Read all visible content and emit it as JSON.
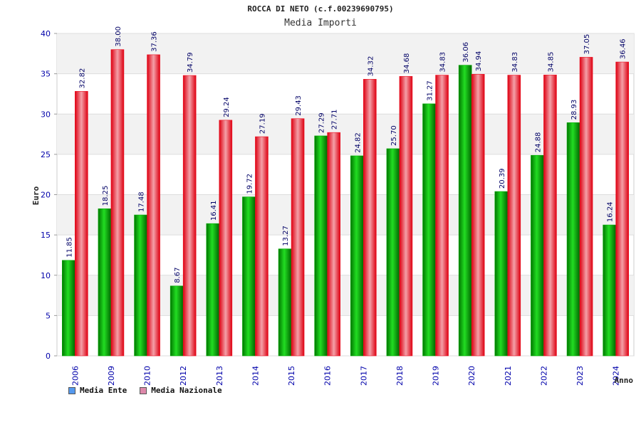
{
  "title": "ROCCA DI NETO (c.f.00239690795)",
  "subtitle": "Media Importi",
  "legend": [
    {
      "label": "Media Ente",
      "color": "#5599ee"
    },
    {
      "label": "Media Nazionale",
      "color": "#dd88aa"
    }
  ],
  "colors": {
    "ente": "#00aa00",
    "nazionale": "#ee1122"
  },
  "chart_data": {
    "type": "bar",
    "title": "ROCCA DI NETO (c.f.00239690795)",
    "subtitle": "Media Importi",
    "xlabel": "Anno",
    "ylabel": "Euro",
    "ylim": [
      0,
      40
    ],
    "yticks": [
      0,
      5,
      10,
      15,
      20,
      25,
      30,
      35,
      40
    ],
    "grid": true,
    "legend_position": "bottom-left",
    "categories": [
      "2006",
      "2009",
      "2010",
      "2012",
      "2013",
      "2014",
      "2015",
      "2016",
      "2017",
      "2018",
      "2019",
      "2020",
      "2021",
      "2022",
      "2023",
      "2024"
    ],
    "series": [
      {
        "name": "Media Ente",
        "values": [
          11.85,
          18.25,
          17.48,
          8.67,
          16.41,
          19.72,
          13.27,
          27.29,
          24.82,
          25.7,
          31.27,
          36.06,
          20.39,
          24.88,
          28.93,
          16.24
        ],
        "labels": [
          "11.85",
          "18.25",
          "17.48",
          "8.67",
          "16.41",
          "19.72",
          "13.27",
          "27.29",
          "24.82",
          "25.70",
          "31.27",
          "36.06",
          "20.39",
          "24.88",
          "28.93",
          "16.24"
        ]
      },
      {
        "name": "Media Nazionale",
        "values": [
          32.82,
          38.0,
          37.36,
          34.79,
          29.24,
          27.19,
          29.43,
          27.71,
          34.32,
          34.68,
          34.83,
          34.94,
          34.83,
          34.85,
          37.05,
          36.46
        ],
        "labels": [
          "32.82",
          "38.00",
          "37.36",
          "34.79",
          "29.24",
          "27.19",
          "29.43",
          "27.71",
          "34.32",
          "34.68",
          "34.83",
          "34.94",
          "34.83",
          "34.85",
          "37.05",
          "36.46"
        ]
      }
    ]
  }
}
